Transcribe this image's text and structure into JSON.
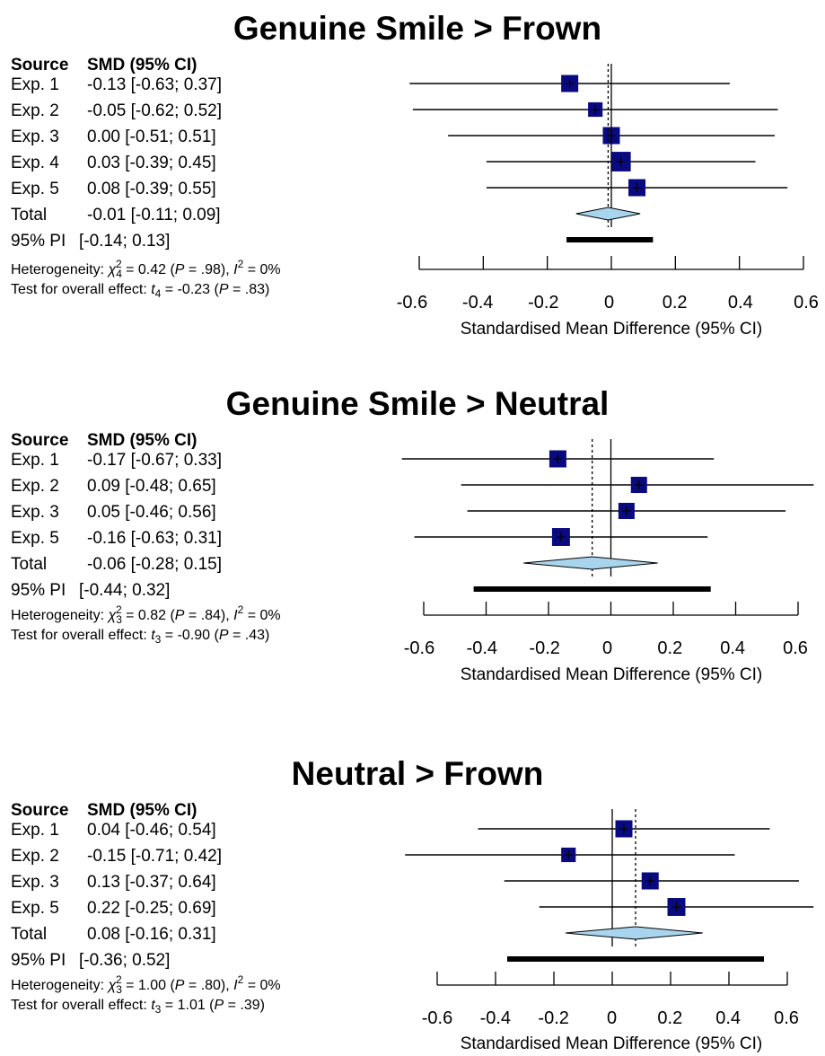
{
  "chart_data": [
    {
      "type": "forest",
      "title": "Genuine Smile > Frown",
      "header": {
        "source": "Source",
        "smd": "SMD (95% CI)"
      },
      "studies": [
        {
          "label": "Exp. 1",
          "smd": -0.13,
          "lo": -0.63,
          "hi": 0.37,
          "text": "-0.13 [-0.63; 0.37]",
          "weight": 1.0
        },
        {
          "label": "Exp. 2",
          "smd": -0.05,
          "lo": -0.62,
          "hi": 0.52,
          "text": "-0.05 [-0.62; 0.52]",
          "weight": 0.85
        },
        {
          "label": "Exp. 3",
          "smd": 0.0,
          "lo": -0.51,
          "hi": 0.51,
          "text": "0.00 [-0.51; 0.51]",
          "weight": 1.0
        },
        {
          "label": "Exp. 4",
          "smd": 0.03,
          "lo": -0.39,
          "hi": 0.45,
          "text": "0.03 [-0.39; 0.45]",
          "weight": 1.15
        },
        {
          "label": "Exp. 5",
          "smd": 0.08,
          "lo": -0.39,
          "hi": 0.55,
          "text": "0.08 [-0.39; 0.55]",
          "weight": 1.0
        }
      ],
      "total": {
        "label": "Total",
        "smd": -0.01,
        "lo": -0.11,
        "hi": 0.09,
        "text": "-0.01 [-0.11; 0.09]"
      },
      "pi": {
        "label": "95% PI",
        "lo": -0.14,
        "hi": 0.13,
        "text": "[-0.14; 0.13]"
      },
      "heterogeneity": {
        "prefix": "Heterogeneity: ",
        "chi": "χ",
        "df": "4",
        "sq": "2",
        "stat": " = 0.42 (",
        "p": "P",
        "pval": " = .98), ",
        "i": "I",
        "i2": " = 0%"
      },
      "overall": {
        "prefix": "Test for overall effect: ",
        "t": "t",
        "df": "4",
        "stat": " = -0.23 (",
        "p": "P",
        "pval": " = .83)"
      },
      "x_ticks": [
        -0.6,
        -0.4,
        -0.2,
        0,
        0.2,
        0.4,
        0.6
      ],
      "x_tick_labels": [
        "-0.6",
        "-0.4",
        "-0.2",
        "0",
        "0.2",
        "0.4",
        "0.6"
      ],
      "xlim": [
        -0.6,
        0.6
      ],
      "xlabel": "Standardised Mean Difference (95% CI)"
    },
    {
      "type": "forest",
      "title": "Genuine Smile > Neutral",
      "header": {
        "source": "Source",
        "smd": "SMD (95% CI)"
      },
      "studies": [
        {
          "label": "Exp. 1",
          "smd": -0.17,
          "lo": -0.67,
          "hi": 0.33,
          "text": "-0.17 [-0.67; 0.33]",
          "weight": 1.0
        },
        {
          "label": "Exp. 2",
          "smd": 0.09,
          "lo": -0.48,
          "hi": 0.65,
          "text": "0.09 [-0.48; 0.65]",
          "weight": 0.95
        },
        {
          "label": "Exp. 3",
          "smd": 0.05,
          "lo": -0.46,
          "hi": 0.56,
          "text": "0.05 [-0.46; 0.56]",
          "weight": 0.95
        },
        {
          "label": "Exp. 5",
          "smd": -0.16,
          "lo": -0.63,
          "hi": 0.31,
          "text": "-0.16 [-0.63; 0.31]",
          "weight": 1.05
        }
      ],
      "total": {
        "label": "Total",
        "smd": -0.06,
        "lo": -0.28,
        "hi": 0.15,
        "text": "-0.06 [-0.28; 0.15]"
      },
      "pi": {
        "label": "95% PI",
        "lo": -0.44,
        "hi": 0.32,
        "text": "[-0.44; 0.32]"
      },
      "heterogeneity": {
        "prefix": "Heterogeneity: ",
        "chi": "χ",
        "df": "3",
        "sq": "2",
        "stat": " = 0.82 (",
        "p": "P",
        "pval": " = .84), ",
        "i": "I",
        "i2": " = 0%"
      },
      "overall": {
        "prefix": "Test for overall effect: ",
        "t": "t",
        "df": "3",
        "stat": " = -0.90 (",
        "p": "P",
        "pval": " = .43)"
      },
      "x_ticks": [
        -0.6,
        -0.4,
        -0.2,
        0,
        0.2,
        0.4,
        0.6
      ],
      "x_tick_labels": [
        "-0.6",
        "-0.4",
        "-0.2",
        "0",
        "0.2",
        "0.4",
        "0.6"
      ],
      "xlim": [
        -0.6,
        0.6
      ],
      "xlabel": "Standardised Mean Difference (95% CI)"
    },
    {
      "type": "forest",
      "title": "Neutral > Frown",
      "header": {
        "source": "Source",
        "smd": "SMD (95% CI)"
      },
      "studies": [
        {
          "label": "Exp. 1",
          "smd": 0.04,
          "lo": -0.46,
          "hi": 0.54,
          "text": "0.04 [-0.46; 0.54]",
          "weight": 1.0
        },
        {
          "label": "Exp. 2",
          "smd": -0.15,
          "lo": -0.71,
          "hi": 0.42,
          "text": "-0.15 [-0.71; 0.42]",
          "weight": 0.85
        },
        {
          "label": "Exp. 3",
          "smd": 0.13,
          "lo": -0.37,
          "hi": 0.64,
          "text": "0.13 [-0.37; 0.64]",
          "weight": 1.0
        },
        {
          "label": "Exp. 5",
          "smd": 0.22,
          "lo": -0.25,
          "hi": 0.69,
          "text": "0.22 [-0.25; 0.69]",
          "weight": 1.05
        }
      ],
      "total": {
        "label": "Total",
        "smd": 0.08,
        "lo": -0.16,
        "hi": 0.31,
        "text": "0.08 [-0.16; 0.31]"
      },
      "pi": {
        "label": "95% PI",
        "lo": -0.36,
        "hi": 0.52,
        "text": "[-0.36; 0.52]"
      },
      "heterogeneity": {
        "prefix": "Heterogeneity: ",
        "chi": "χ",
        "df": "3",
        "sq": "2",
        "stat": " = 1.00 (",
        "p": "P",
        "pval": " = .80), ",
        "i": "I",
        "i2": " = 0%"
      },
      "overall": {
        "prefix": "Test for overall effect: ",
        "t": "t",
        "df": "3",
        "stat": " = 1.01 (",
        "p": "P",
        "pval": " = .39)"
      },
      "x_ticks": [
        -0.6,
        -0.4,
        -0.2,
        0,
        0.2,
        0.4,
        0.6
      ],
      "x_tick_labels": [
        "-0.6",
        "-0.4",
        "-0.2",
        "0",
        "0.2",
        "0.4",
        "0.6"
      ],
      "xlim": [
        -0.6,
        0.6
      ],
      "xlabel": "Standardised Mean Difference (95% CI)"
    }
  ],
  "colors": {
    "square": "#0a0a80",
    "diamond": "#a8d4ee",
    "line": "#000000"
  }
}
